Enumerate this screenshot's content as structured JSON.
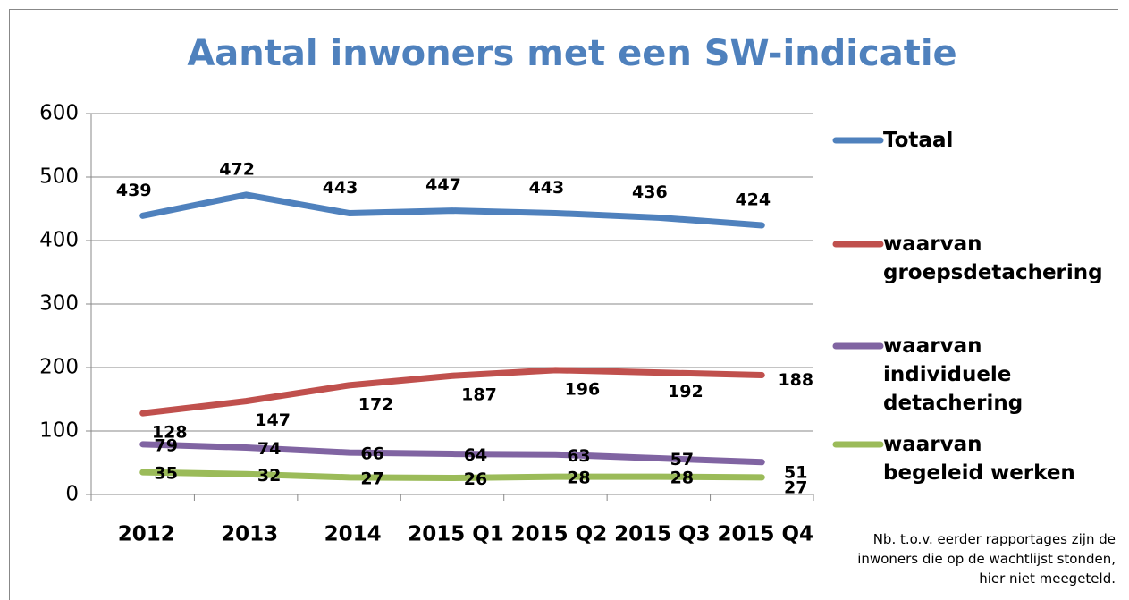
{
  "chart_data": {
    "type": "line",
    "title": "Aantal inwoners met een SW-indicatie",
    "categories": [
      "2012",
      "2013",
      "2014",
      "2015 Q1",
      "2015 Q2",
      "2015 Q3",
      "2015 Q4"
    ],
    "series": [
      {
        "name": "Totaal",
        "color": "#4f81bd",
        "values": [
          439,
          472,
          443,
          447,
          443,
          436,
          424
        ]
      },
      {
        "name": "waarvan groepsdetachering",
        "color": "#c0504d",
        "values": [
          128,
          147,
          172,
          187,
          196,
          192,
          188
        ]
      },
      {
        "name": "waarvan individuele detachering",
        "color": "#8064a2",
        "values": [
          79,
          74,
          66,
          64,
          63,
          57,
          51
        ]
      },
      {
        "name": "waarvan begeleid werken",
        "color": "#9bbb59",
        "values": [
          35,
          32,
          27,
          26,
          28,
          28,
          27
        ]
      }
    ],
    "ylim": [
      0,
      600
    ],
    "yticks": [
      0,
      100,
      200,
      300,
      400,
      500,
      600
    ],
    "grid": true,
    "note": "Nb. t.o.v. eerder rapportages zijn de inwoners die op de wachtlijst stonden, hier niet meegeteld."
  }
}
